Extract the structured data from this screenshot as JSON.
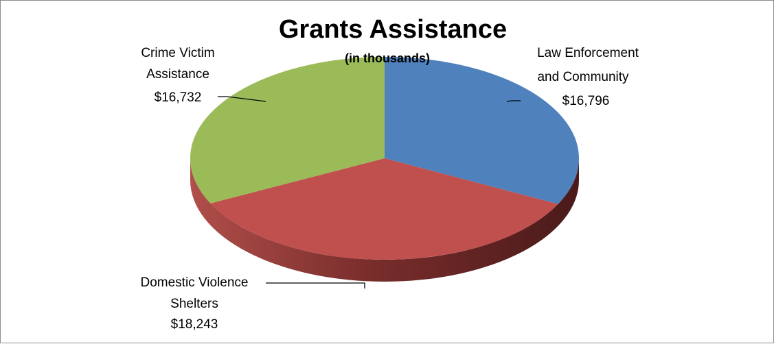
{
  "chart_data": {
    "type": "pie",
    "title": "Grants Assistance",
    "subtitle": "(in thousands)",
    "slices": [
      {
        "label_lines": [
          "Law Enforcement",
          "and Community"
        ],
        "value_text": "$16,796",
        "value": 16796,
        "color": "#4f81bd"
      },
      {
        "label_lines": [
          "Domestic Violence",
          "Shelters"
        ],
        "value_text": "$18,243",
        "value": 18243,
        "color": "#c0504d"
      },
      {
        "label_lines": [
          "Crime Victim",
          "Assistance"
        ],
        "value_text": "$16,732",
        "value": 16732,
        "color": "#9bbb59"
      }
    ]
  }
}
